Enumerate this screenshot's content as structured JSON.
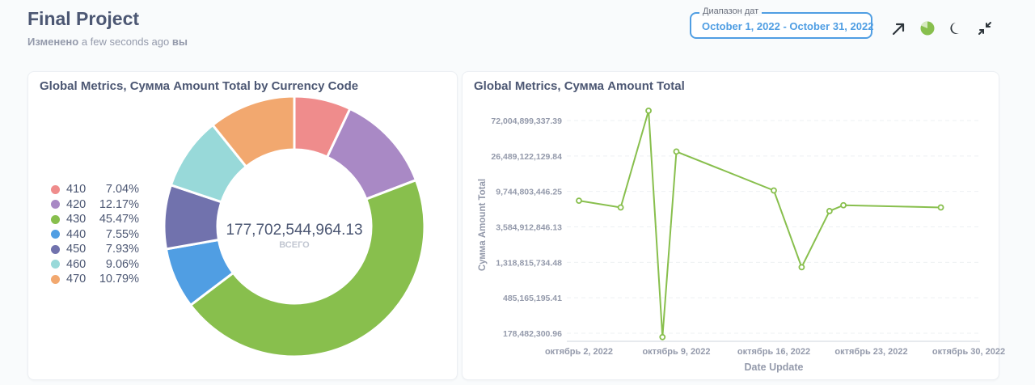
{
  "header": {
    "title": "Final Project",
    "subtitle_prefix": "Изменено",
    "subtitle_middle": "a few seconds ago",
    "subtitle_suffix": "вы"
  },
  "date_filter": {
    "label": "Диапазон дат",
    "value": "October 1, 2022 - October 31, 2022"
  },
  "toolbar": {
    "icons": [
      "arrow-up-right-icon",
      "pie-timer-icon",
      "moon-icon",
      "collapse-icon"
    ]
  },
  "colors": {
    "accent": "#509ee3",
    "line": "#88bf4d"
  },
  "pie_card": {
    "title_prefix": "Global Metrics, ",
    "title_bold": "Сумма",
    "title_suffix": " Amount Total by Currency Code",
    "total": "177,702,544,964.13",
    "total_label": "ВСЕГО",
    "legend": [
      {
        "code": "410",
        "pct": "7.04%",
        "color": "#ef8c8c"
      },
      {
        "code": "420",
        "pct": "12.17%",
        "color": "#a989c5"
      },
      {
        "code": "430",
        "pct": "45.47%",
        "color": "#88bf4d"
      },
      {
        "code": "440",
        "pct": "7.55%",
        "color": "#509ee3"
      },
      {
        "code": "450",
        "pct": "7.93%",
        "color": "#7172ad"
      },
      {
        "code": "460",
        "pct": "9.06%",
        "color": "#98d9d9"
      },
      {
        "code": "470",
        "pct": "10.79%",
        "color": "#f2a86f"
      }
    ]
  },
  "line_card": {
    "title_prefix": "Global Metrics, ",
    "title_bold": "Сумма",
    "title_suffix": " Amount Total"
  },
  "chart_data": [
    {
      "type": "pie",
      "categories": [
        "410",
        "420",
        "430",
        "440",
        "450",
        "460",
        "470"
      ],
      "values": [
        7.04,
        12.17,
        45.47,
        7.55,
        7.93,
        9.06,
        10.79
      ],
      "total": 177702544964.13
    },
    {
      "type": "line",
      "xlabel": "Date Update",
      "ylabel": "Сумма Amount Total",
      "y_scale": "log",
      "ticks_y": [
        "72,004,899,337.39",
        "26,489,122,129.84",
        "9,744,803,446.25",
        "3,584,912,846.13",
        "1,318,815,734.48",
        "485,165,195.41",
        "178,482,300.96"
      ],
      "ticks_x": [
        "октябрь 2, 2022",
        "октябрь 9, 2022",
        "октябрь 16, 2022",
        "октябрь 23, 2022",
        "октябрь 30, 2022"
      ],
      "x": [
        "2022-10-02",
        "2022-10-05",
        "2022-10-07",
        "2022-10-08",
        "2022-10-09",
        "2022-10-16",
        "2022-10-18",
        "2022-10-20",
        "2022-10-21",
        "2022-10-28"
      ],
      "values": [
        7500000000,
        6200000000,
        95000000000,
        160000000,
        30000000000,
        10000000000,
        1150000000,
        5600000000,
        6600000000,
        6200000000
      ],
      "grid": true
    }
  ]
}
